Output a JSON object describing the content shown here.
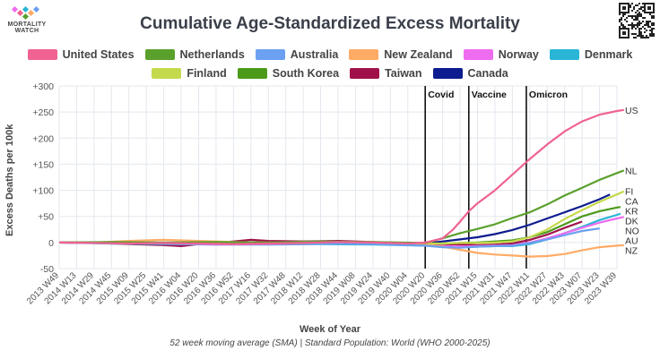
{
  "logo": {
    "text": "MORTALITY WATCH"
  },
  "chart_data": {
    "type": "line",
    "title": "Cumulative Age-Standardized Excess Mortality",
    "ylabel": "Excess Deaths per 100k",
    "xlabel": "Week of Year",
    "footnote": "52 week moving average (SMA) | Standard Population: World (WHO 2000-2025)",
    "ylim": [
      -50,
      300
    ],
    "yticks": [
      -50,
      0,
      50,
      100,
      150,
      200,
      250,
      300
    ],
    "ytick_labels": [
      "-50",
      "0",
      "+50",
      "+100",
      "+150",
      "+200",
      "+250",
      "+300"
    ],
    "x_categories": [
      "2013 W49",
      "2014 W13",
      "2014 W29",
      "2014 W45",
      "2015 W09",
      "2015 W25",
      "2015 W41",
      "2016 W04",
      "2016 W20",
      "2016 W36",
      "2016 W52",
      "2017 W16",
      "2017 W32",
      "2017 W48",
      "2018 W12",
      "2018 W28",
      "2018 W44",
      "2019 W08",
      "2019 W24",
      "2019 W40",
      "2020 W04",
      "2020 W20",
      "2020 W36",
      "2020 W52",
      "2021 W15",
      "2021 W31",
      "2021 W47",
      "2022 W11",
      "2022 W27",
      "2022 W43",
      "2023 W07",
      "2023 W23",
      "2023 W39"
    ],
    "grid": true,
    "legend_position": "top",
    "annotations": [
      {
        "label": "Covid",
        "x_index": 21
      },
      {
        "label": "Vaccine",
        "x_index": 23.5
      },
      {
        "label": "Omicron",
        "x_index": 26.8
      }
    ],
    "series": [
      {
        "name": "United States",
        "label": "US",
        "color": "#f06292",
        "end_index": 32.4,
        "points": [
          [
            0,
            0
          ],
          [
            2,
            -1
          ],
          [
            4,
            -2
          ],
          [
            6,
            -1
          ],
          [
            8,
            -2
          ],
          [
            10,
            -3
          ],
          [
            12,
            -2
          ],
          [
            14,
            -1
          ],
          [
            16,
            1
          ],
          [
            18,
            0
          ],
          [
            20,
            -2
          ],
          [
            21,
            0
          ],
          [
            22,
            8
          ],
          [
            22.6,
            25
          ],
          [
            23,
            40
          ],
          [
            23.5,
            60
          ],
          [
            24,
            75
          ],
          [
            25,
            100
          ],
          [
            26,
            130
          ],
          [
            27,
            160
          ],
          [
            28,
            188
          ],
          [
            29,
            213
          ],
          [
            30,
            232
          ],
          [
            31,
            245
          ],
          [
            32,
            252
          ],
          [
            32.4,
            254
          ]
        ]
      },
      {
        "name": "Netherlands",
        "label": "NL",
        "color": "#5aa02c",
        "end_index": 32.4,
        "points": [
          [
            0,
            0
          ],
          [
            3,
            1
          ],
          [
            6,
            0
          ],
          [
            9,
            1
          ],
          [
            12,
            0
          ],
          [
            15,
            2
          ],
          [
            18,
            1
          ],
          [
            21,
            -1
          ],
          [
            22,
            8
          ],
          [
            23,
            18
          ],
          [
            24,
            26
          ],
          [
            25,
            35
          ],
          [
            26,
            47
          ],
          [
            27,
            58
          ],
          [
            28,
            73
          ],
          [
            29,
            90
          ],
          [
            30,
            105
          ],
          [
            31,
            120
          ],
          [
            32,
            133
          ],
          [
            32.4,
            138
          ]
        ]
      },
      {
        "name": "Australia",
        "label": "AU",
        "color": "#6ca0f0",
        "end_index": 31,
        "points": [
          [
            0,
            0
          ],
          [
            3,
            -1
          ],
          [
            6,
            -2
          ],
          [
            9,
            -3
          ],
          [
            12,
            -2
          ],
          [
            15,
            -2
          ],
          [
            18,
            -3
          ],
          [
            21,
            -6
          ],
          [
            22,
            -9
          ],
          [
            23,
            -10
          ],
          [
            24,
            -8
          ],
          [
            25,
            -7
          ],
          [
            26,
            -6
          ],
          [
            27,
            -1
          ],
          [
            28,
            6
          ],
          [
            29,
            14
          ],
          [
            30,
            22
          ],
          [
            31,
            27
          ]
        ]
      },
      {
        "name": "New Zealand",
        "label": "NZ",
        "color": "#ffab66",
        "end_index": 32.4,
        "points": [
          [
            0,
            0
          ],
          [
            2,
            0
          ],
          [
            4,
            3
          ],
          [
            6,
            5
          ],
          [
            8,
            3
          ],
          [
            10,
            1
          ],
          [
            12,
            0
          ],
          [
            14,
            -1
          ],
          [
            16,
            0
          ],
          [
            18,
            1
          ],
          [
            20,
            -1
          ],
          [
            21,
            -4
          ],
          [
            22,
            -8
          ],
          [
            23,
            -14
          ],
          [
            24,
            -20
          ],
          [
            25,
            -23
          ],
          [
            26,
            -25
          ],
          [
            27,
            -27
          ],
          [
            28,
            -26
          ],
          [
            29,
            -22
          ],
          [
            30,
            -15
          ],
          [
            31,
            -9
          ],
          [
            32,
            -6
          ],
          [
            32.4,
            -5
          ]
        ]
      },
      {
        "name": "Norway",
        "label": "NO",
        "color": "#ee6cf0",
        "end_index": 32.4,
        "points": [
          [
            0,
            0
          ],
          [
            3,
            -1
          ],
          [
            6,
            -2
          ],
          [
            9,
            -4
          ],
          [
            12,
            -3
          ],
          [
            15,
            -2
          ],
          [
            18,
            -2
          ],
          [
            21,
            -5
          ],
          [
            22,
            -7
          ],
          [
            23,
            -8
          ],
          [
            24,
            -7
          ],
          [
            25,
            -6
          ],
          [
            26,
            -5
          ],
          [
            27,
            0
          ],
          [
            28,
            8
          ],
          [
            29,
            18
          ],
          [
            30,
            28
          ],
          [
            31,
            38
          ],
          [
            32,
            46
          ],
          [
            32.4,
            49
          ]
        ]
      },
      {
        "name": "Denmark",
        "label": "DK",
        "color": "#29b6d6",
        "end_index": 32.2,
        "points": [
          [
            0,
            0
          ],
          [
            3,
            -2
          ],
          [
            6,
            -3
          ],
          [
            9,
            -4
          ],
          [
            12,
            -4
          ],
          [
            15,
            -3
          ],
          [
            18,
            -4
          ],
          [
            21,
            -6
          ],
          [
            22,
            -8
          ],
          [
            23,
            -9
          ],
          [
            24,
            -8
          ],
          [
            25,
            -7
          ],
          [
            26,
            -7
          ],
          [
            27,
            -3
          ],
          [
            28,
            6
          ],
          [
            29,
            18
          ],
          [
            30,
            30
          ],
          [
            31,
            43
          ],
          [
            32,
            53
          ],
          [
            32.2,
            55
          ]
        ]
      },
      {
        "name": "Finland",
        "label": "FI",
        "color": "#c5d94c",
        "end_index": 32.4,
        "points": [
          [
            0,
            0
          ],
          [
            3,
            -1
          ],
          [
            6,
            -1
          ],
          [
            9,
            -2
          ],
          [
            12,
            -2
          ],
          [
            15,
            0
          ],
          [
            18,
            -1
          ],
          [
            21,
            -2
          ],
          [
            22,
            -2
          ],
          [
            23,
            -1
          ],
          [
            24,
            -1
          ],
          [
            25,
            0
          ],
          [
            26,
            2
          ],
          [
            27,
            10
          ],
          [
            28,
            25
          ],
          [
            29,
            45
          ],
          [
            30,
            62
          ],
          [
            31,
            78
          ],
          [
            32,
            92
          ],
          [
            32.4,
            98
          ]
        ]
      },
      {
        "name": "South Korea",
        "label": "KR",
        "color": "#4c9a1a",
        "end_index": 32.2,
        "points": [
          [
            0,
            0
          ],
          [
            3,
            0
          ],
          [
            6,
            -1
          ],
          [
            9,
            -2
          ],
          [
            12,
            -1
          ],
          [
            15,
            0
          ],
          [
            18,
            -1
          ],
          [
            21,
            -2
          ],
          [
            22,
            -2
          ],
          [
            23,
            -1
          ],
          [
            24,
            0
          ],
          [
            25,
            2
          ],
          [
            26,
            4
          ],
          [
            27,
            10
          ],
          [
            28,
            20
          ],
          [
            29,
            35
          ],
          [
            30,
            50
          ],
          [
            31,
            60
          ],
          [
            32,
            67
          ],
          [
            32.2,
            68
          ]
        ]
      },
      {
        "name": "Taiwan",
        "label": "",
        "color": "#a0114a",
        "end_index": 30,
        "points": [
          [
            0,
            0
          ],
          [
            2,
            -1
          ],
          [
            4,
            -3
          ],
          [
            6,
            -5
          ],
          [
            7,
            -7
          ],
          [
            8,
            -3
          ],
          [
            10,
            2
          ],
          [
            11,
            5
          ],
          [
            12,
            3
          ],
          [
            14,
            2
          ],
          [
            16,
            3
          ],
          [
            18,
            1
          ],
          [
            20,
            -2
          ],
          [
            21,
            -3
          ],
          [
            22,
            -3
          ],
          [
            23,
            -4
          ],
          [
            24,
            -5
          ],
          [
            25,
            -4
          ],
          [
            26,
            -2
          ],
          [
            27,
            5
          ],
          [
            28,
            15
          ],
          [
            29,
            28
          ],
          [
            30,
            40
          ]
        ]
      },
      {
        "name": "Canada",
        "label": "CA",
        "color": "#0d1c8f",
        "end_index": 31.6,
        "points": [
          [
            0,
            0
          ],
          [
            3,
            -1
          ],
          [
            6,
            -1
          ],
          [
            9,
            -2
          ],
          [
            12,
            -1
          ],
          [
            15,
            0
          ],
          [
            18,
            -1
          ],
          [
            21,
            -2
          ],
          [
            22,
            2
          ],
          [
            23,
            6
          ],
          [
            24,
            10
          ],
          [
            25,
            16
          ],
          [
            26,
            24
          ],
          [
            27,
            34
          ],
          [
            28,
            46
          ],
          [
            29,
            58
          ],
          [
            30,
            70
          ],
          [
            31,
            83
          ],
          [
            31.6,
            92
          ]
        ]
      }
    ]
  }
}
